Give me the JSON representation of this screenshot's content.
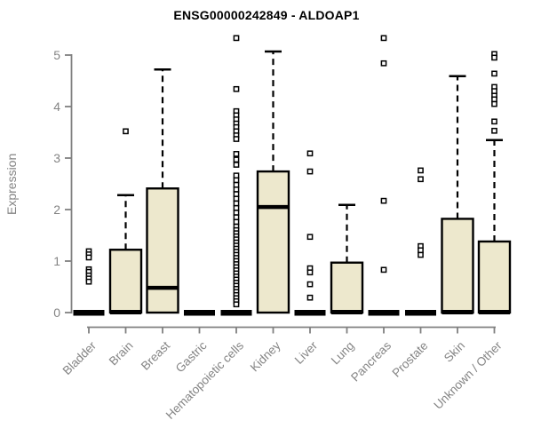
{
  "chart_data": {
    "type": "boxplot",
    "title": "ENSG00000242849 - ALDOAP1",
    "ylabel": "Expression",
    "xlabel": "",
    "ylim": [
      0,
      5.45
    ],
    "yticks": [
      0,
      1,
      2,
      3,
      4,
      5
    ],
    "grid": false,
    "legend": "none",
    "categories": [
      "Bladder",
      "Brain",
      "Breast",
      "Gastric",
      "Hematopoietic cells",
      "Kidney",
      "Liver",
      "Lung",
      "Pancreas",
      "Prostate",
      "Skin",
      "Unknown / Other"
    ],
    "series": [
      {
        "name": "Bladder",
        "whisker_low": 0,
        "q1": 0,
        "median": 0,
        "q3": 0,
        "whisker_high": 0,
        "outliers": [
          1.19,
          1.13,
          1.07,
          0.84,
          0.79,
          0.72,
          0.66,
          0.6
        ]
      },
      {
        "name": "Brain",
        "whisker_low": 0,
        "q1": 0,
        "median": 0,
        "q3": 1.22,
        "whisker_high": 2.28,
        "outliers": [
          3.52
        ]
      },
      {
        "name": "Breast",
        "whisker_low": 0,
        "q1": 0,
        "median": 0.48,
        "q3": 2.41,
        "whisker_high": 4.72,
        "outliers": []
      },
      {
        "name": "Gastric",
        "whisker_low": 0,
        "q1": 0,
        "median": 0,
        "q3": 0,
        "whisker_high": 0,
        "outliers": []
      },
      {
        "name": "Hematopoietic cells",
        "whisker_low": 0,
        "q1": 0,
        "median": 0,
        "q3": 0,
        "whisker_high": 0,
        "outliers": [
          5.33,
          4.34,
          3.91,
          3.83,
          3.75,
          3.67,
          3.6,
          3.52,
          3.44,
          3.37,
          3.08,
          2.97,
          2.87,
          2.66,
          2.57,
          2.48,
          2.39,
          2.3,
          2.21,
          2.12,
          2.03,
          1.94,
          1.85,
          1.76,
          1.67,
          1.6,
          1.54,
          1.48,
          1.42,
          1.36,
          1.3,
          1.24,
          1.18,
          1.12,
          1.06,
          1.0,
          0.94,
          0.88,
          0.82,
          0.76,
          0.7,
          0.64,
          0.58,
          0.52,
          0.46,
          0.4,
          0.34,
          0.28,
          0.22,
          0.16
        ]
      },
      {
        "name": "Kidney",
        "whisker_low": 0,
        "q1": 0,
        "median": 2.05,
        "q3": 2.74,
        "whisker_high": 5.07,
        "outliers": []
      },
      {
        "name": "Liver",
        "whisker_low": 0,
        "q1": 0,
        "median": 0,
        "q3": 0,
        "whisker_high": 0,
        "outliers": [
          3.09,
          2.74,
          1.47,
          0.86,
          0.78,
          0.55,
          0.29
        ]
      },
      {
        "name": "Lung",
        "whisker_low": 0,
        "q1": 0,
        "median": 0,
        "q3": 0.97,
        "whisker_high": 2.09,
        "outliers": []
      },
      {
        "name": "Pancreas",
        "whisker_low": 0,
        "q1": 0,
        "median": 0,
        "q3": 0,
        "whisker_high": 0,
        "outliers": [
          5.33,
          4.84,
          2.17,
          0.83
        ]
      },
      {
        "name": "Prostate",
        "whisker_low": 0,
        "q1": 0,
        "median": 0,
        "q3": 0,
        "whisker_high": 0,
        "outliers": [
          2.76,
          2.59,
          1.29,
          1.21,
          1.12
        ]
      },
      {
        "name": "Skin",
        "whisker_low": 0,
        "q1": 0,
        "median": 0,
        "q3": 1.82,
        "whisker_high": 4.59,
        "outliers": []
      },
      {
        "name": "Unknown / Other",
        "whisker_low": 0,
        "q1": 0,
        "median": 0,
        "q3": 1.38,
        "whisker_high": 3.35,
        "outliers": [
          5.02,
          4.95,
          4.64,
          4.38,
          4.3,
          4.21,
          4.14,
          4.05,
          3.71,
          3.53
        ]
      }
    ],
    "style": {
      "box_fill": "#EDE8CD",
      "box_stroke": "#000000",
      "median_color": "#000000",
      "whisker_style": "dashed",
      "outlier_marker": "open-square",
      "axis_color": "#808080",
      "tick_label_color": "#848484",
      "title_color": "#000000",
      "background": "#ffffff"
    }
  }
}
